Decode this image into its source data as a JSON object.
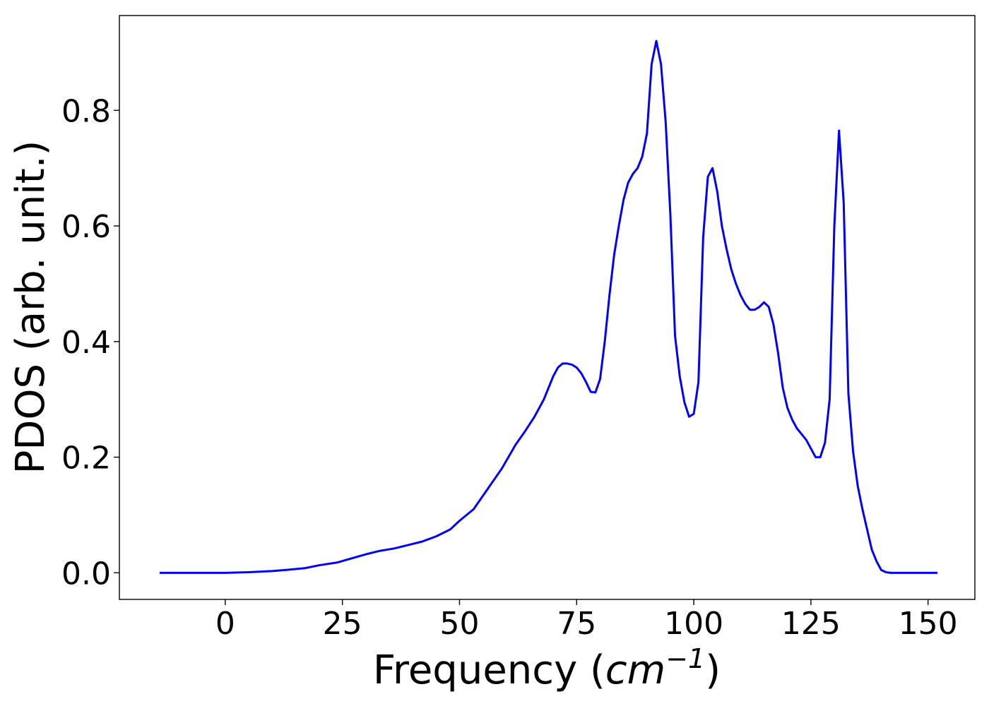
{
  "chart_data": {
    "type": "line",
    "title": "",
    "xlabel": "Frequency",
    "xlabel_unit_base": "cm",
    "xlabel_unit_exp": "−1",
    "ylabel": "PDOS (arb. unit.)",
    "xlim": [
      -22.6,
      160.0
    ],
    "ylim": [
      -0.046,
      0.964
    ],
    "xticks": [
      0,
      25,
      50,
      75,
      100,
      125,
      150
    ],
    "yticks": [
      0.0,
      0.2,
      0.4,
      0.6,
      0.8
    ],
    "xtick_labels": [
      "0",
      "25",
      "50",
      "75",
      "100",
      "125",
      "150"
    ],
    "ytick_labels": [
      "0.0",
      "0.2",
      "0.4",
      "0.6",
      "0.8"
    ],
    "grid": false,
    "legend": "none",
    "series": [
      {
        "color": "#0000ff",
        "x": [
          -14.0,
          0,
          5,
          10,
          13,
          17,
          20,
          24,
          27,
          30,
          33,
          36,
          39,
          42,
          45,
          48,
          50,
          53,
          56,
          59,
          62,
          64,
          66,
          68,
          69,
          70,
          71,
          72,
          73,
          74,
          75,
          76,
          77,
          78,
          79,
          80,
          81,
          82,
          83,
          84,
          85,
          86,
          87,
          88,
          89,
          90,
          91,
          92,
          93,
          94,
          95,
          96,
          97,
          98,
          99,
          100,
          101,
          102,
          103,
          104,
          105,
          106,
          107,
          108,
          109,
          110,
          111,
          112,
          113,
          114,
          115,
          116,
          117,
          118,
          119,
          120,
          121,
          122,
          123,
          124,
          125,
          126,
          127,
          128,
          129,
          130,
          131,
          132,
          133,
          134,
          135,
          136,
          137,
          138,
          139,
          140,
          141,
          142,
          145,
          152
        ],
        "y": [
          0.0,
          0.0,
          0.001,
          0.003,
          0.005,
          0.008,
          0.013,
          0.018,
          0.025,
          0.032,
          0.038,
          0.042,
          0.048,
          0.054,
          0.063,
          0.075,
          0.09,
          0.11,
          0.145,
          0.18,
          0.222,
          0.245,
          0.27,
          0.3,
          0.32,
          0.34,
          0.355,
          0.362,
          0.362,
          0.36,
          0.355,
          0.345,
          0.33,
          0.313,
          0.312,
          0.335,
          0.4,
          0.48,
          0.55,
          0.6,
          0.645,
          0.675,
          0.69,
          0.7,
          0.72,
          0.76,
          0.88,
          0.92,
          0.88,
          0.78,
          0.62,
          0.41,
          0.34,
          0.295,
          0.27,
          0.275,
          0.33,
          0.58,
          0.685,
          0.7,
          0.66,
          0.6,
          0.56,
          0.525,
          0.5,
          0.48,
          0.465,
          0.455,
          0.455,
          0.46,
          0.468,
          0.46,
          0.43,
          0.38,
          0.32,
          0.285,
          0.265,
          0.25,
          0.24,
          0.23,
          0.215,
          0.2,
          0.2,
          0.225,
          0.3,
          0.6,
          0.765,
          0.64,
          0.31,
          0.21,
          0.15,
          0.11,
          0.075,
          0.04,
          0.02,
          0.005,
          0.001,
          0.0,
          0.0,
          0.0
        ]
      }
    ]
  }
}
